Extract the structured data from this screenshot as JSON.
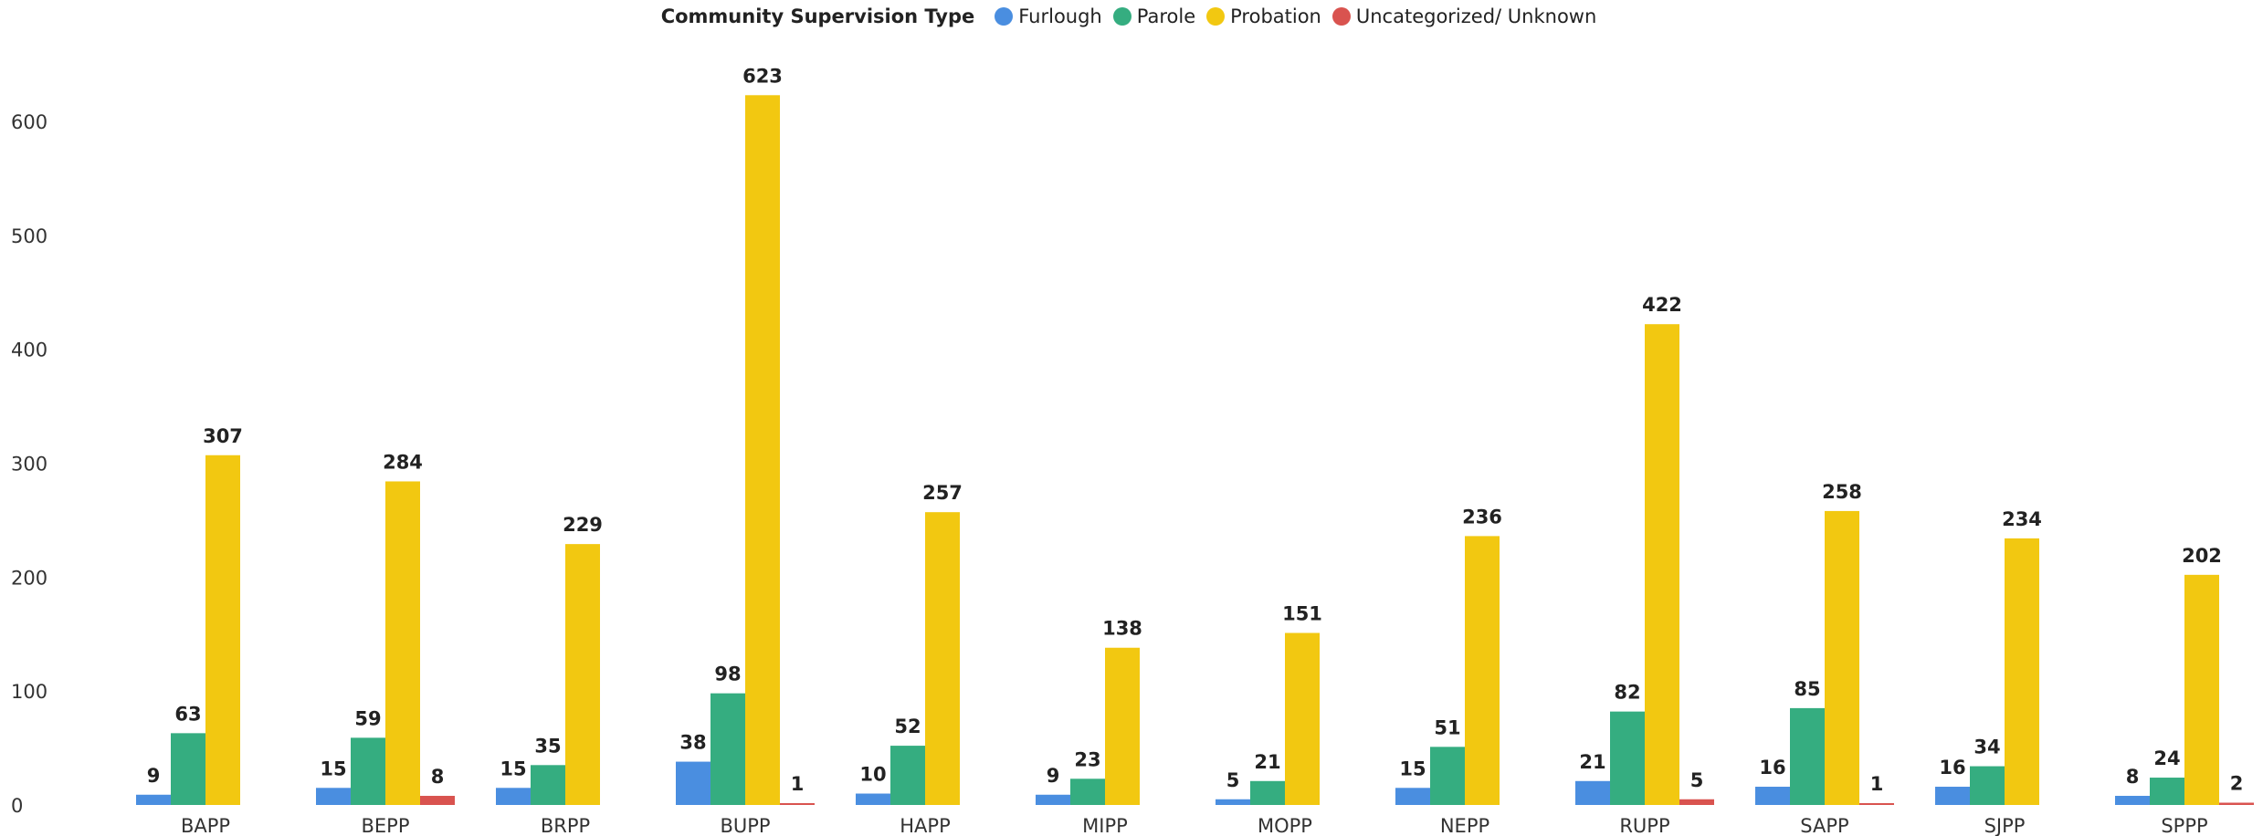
{
  "chart_data": {
    "type": "bar",
    "legend_title": "Community Supervision Type",
    "legend_position": "top-center",
    "categories": [
      "BAPP",
      "BEPP",
      "BRPP",
      "BUPP",
      "HAPP",
      "MIPP",
      "MOPP",
      "NEPP",
      "RUPP",
      "SAPP",
      "SJPP",
      "SPPP"
    ],
    "series": [
      {
        "name": "Furlough",
        "color": "#4a8ee0",
        "values": [
          9,
          15,
          15,
          38,
          10,
          9,
          5,
          15,
          21,
          16,
          16,
          8
        ]
      },
      {
        "name": "Parole",
        "color": "#35ad80",
        "values": [
          63,
          59,
          35,
          98,
          52,
          23,
          21,
          51,
          82,
          85,
          34,
          24
        ]
      },
      {
        "name": "Probation",
        "color": "#f2c811",
        "values": [
          307,
          284,
          229,
          623,
          257,
          138,
          151,
          236,
          422,
          258,
          234,
          202
        ]
      },
      {
        "name": "Uncategorized/ Unknown",
        "color": "#d9534f",
        "values": [
          null,
          8,
          null,
          1,
          null,
          null,
          null,
          null,
          5,
          1,
          null,
          2
        ]
      }
    ],
    "ylim": [
      0,
      630
    ],
    "yticks": [
      0,
      100,
      200,
      300,
      400,
      500,
      600
    ],
    "grid": false,
    "data_labels": true
  }
}
